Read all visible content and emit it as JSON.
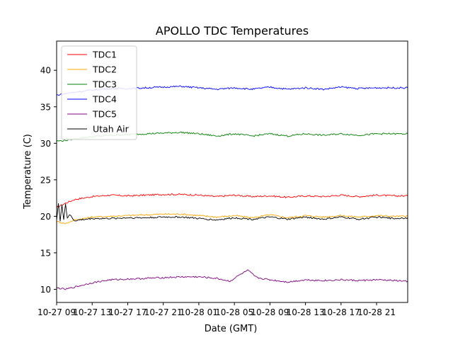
{
  "chart_data": {
    "type": "line",
    "title": "APOLLO TDC Temperatures",
    "xlabel": "Date (GMT)",
    "ylabel": "Temperature (C)",
    "xlim": [
      0,
      39.5
    ],
    "ylim": [
      8.2,
      44
    ],
    "x_ticks": [
      {
        "value": 0,
        "label": "10-27 09"
      },
      {
        "value": 4,
        "label": "10-27 13"
      },
      {
        "value": 8,
        "label": "10-27 17"
      },
      {
        "value": 12,
        "label": "10-27 21"
      },
      {
        "value": 16,
        "label": "10-28 01"
      },
      {
        "value": 20,
        "label": "10-28 05"
      },
      {
        "value": 24,
        "label": "10-28 09"
      },
      {
        "value": 28,
        "label": "10-28 13"
      },
      {
        "value": 32,
        "label": "10-28 17"
      },
      {
        "value": 36,
        "label": "10-28 21"
      }
    ],
    "y_ticks": [
      10,
      15,
      20,
      25,
      30,
      35,
      40
    ],
    "legend_position": "upper-left",
    "series": [
      {
        "name": "TDC1",
        "color": "#ff0000",
        "x": [
          0,
          1,
          2,
          4,
          6,
          8,
          10,
          12,
          14,
          16,
          18,
          20,
          22,
          24,
          26,
          28,
          30,
          32,
          34,
          36,
          38,
          39.5
        ],
        "y": [
          21.2,
          21.8,
          22.3,
          22.7,
          22.9,
          22.8,
          22.9,
          23.0,
          23.0,
          22.9,
          22.7,
          22.9,
          22.7,
          22.8,
          22.6,
          22.8,
          22.7,
          22.9,
          22.7,
          22.9,
          22.8,
          22.8
        ]
      },
      {
        "name": "TDC2",
        "color": "#ffa500",
        "x": [
          0,
          1,
          2,
          4,
          6,
          8,
          10,
          12,
          14,
          16,
          18,
          20,
          22,
          24,
          26,
          28,
          30,
          32,
          34,
          36,
          38,
          39.5
        ],
        "y": [
          19.3,
          19.0,
          19.5,
          19.9,
          20.0,
          20.1,
          20.2,
          20.3,
          20.3,
          20.1,
          19.9,
          20.1,
          19.8,
          20.2,
          19.8,
          20.1,
          19.9,
          20.1,
          19.9,
          20.1,
          20.0,
          20.0
        ]
      },
      {
        "name": "TDC3",
        "color": "#008000",
        "x": [
          0,
          1,
          2,
          4,
          6,
          8,
          10,
          12,
          14,
          16,
          18,
          20,
          22,
          24,
          26,
          28,
          30,
          32,
          34,
          36,
          38,
          39.5
        ],
        "y": [
          30.3,
          30.4,
          30.6,
          30.9,
          31.1,
          31.2,
          31.3,
          31.4,
          31.5,
          31.3,
          31.0,
          31.3,
          31.0,
          31.3,
          31.0,
          31.3,
          31.1,
          31.3,
          31.1,
          31.3,
          31.3,
          31.3
        ]
      },
      {
        "name": "TDC4",
        "color": "#0000ff",
        "x": [
          0,
          1,
          2,
          4,
          6,
          8,
          10,
          12,
          14,
          16,
          18,
          20,
          22,
          24,
          26,
          28,
          30,
          32,
          34,
          36,
          38,
          39.5
        ],
        "y": [
          36.6,
          36.8,
          37.0,
          37.3,
          37.5,
          37.5,
          37.6,
          37.7,
          37.8,
          37.6,
          37.4,
          37.6,
          37.4,
          37.7,
          37.4,
          37.6,
          37.4,
          37.7,
          37.5,
          37.6,
          37.6,
          37.6
        ]
      },
      {
        "name": "TDC5",
        "color": "#800080",
        "x": [
          0,
          1,
          2,
          4,
          6,
          8,
          10,
          12,
          14,
          16,
          18,
          19.5,
          20.5,
          21.5,
          22.5,
          24,
          26,
          28,
          30,
          32,
          34,
          36,
          38,
          39.5
        ],
        "y": [
          10.2,
          10.0,
          10.3,
          10.9,
          11.3,
          11.4,
          11.5,
          11.6,
          11.7,
          11.7,
          11.5,
          11.1,
          11.9,
          12.6,
          11.6,
          11.3,
          11.0,
          11.3,
          11.2,
          11.3,
          11.2,
          11.3,
          11.2,
          11.1
        ]
      },
      {
        "name": "Utah Air",
        "color": "#000000",
        "x": [
          0,
          0.2,
          0.4,
          0.6,
          0.8,
          1.0,
          1.2,
          1.5,
          2,
          4,
          6,
          8,
          10,
          12,
          14,
          16,
          18,
          20,
          22,
          24,
          26,
          28,
          30,
          32,
          34,
          36,
          38,
          39.5
        ],
        "y": [
          19.5,
          21.8,
          19.3,
          21.6,
          19.6,
          21.7,
          19.8,
          20.2,
          19.4,
          19.7,
          19.7,
          19.8,
          19.8,
          19.9,
          19.9,
          19.7,
          19.5,
          19.8,
          19.6,
          19.9,
          19.6,
          19.9,
          19.6,
          19.9,
          19.6,
          19.9,
          19.7,
          19.8
        ]
      }
    ]
  }
}
